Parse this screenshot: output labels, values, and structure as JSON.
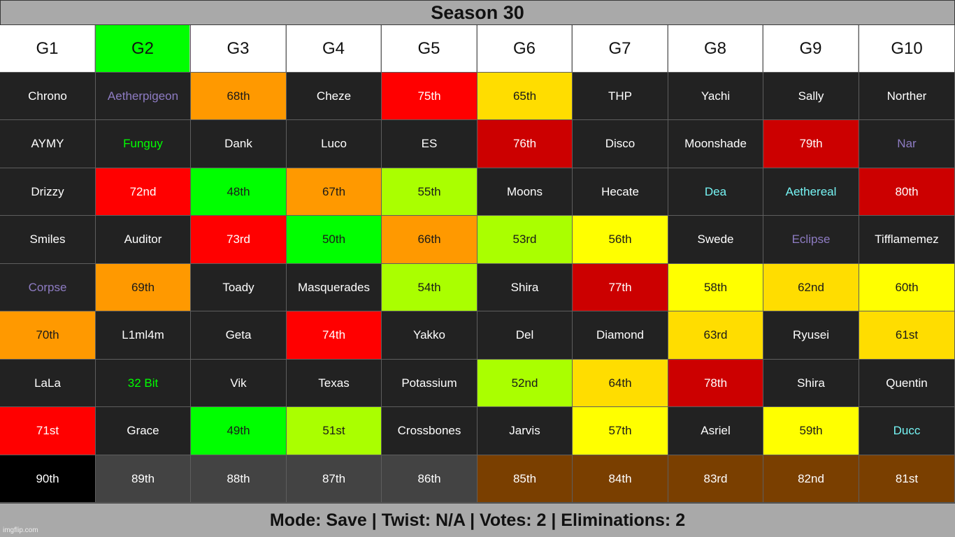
{
  "title": "Season 30",
  "headers": [
    {
      "label": "G1",
      "bg": "#ffffff"
    },
    {
      "label": "G2",
      "bg": "#00ff00"
    },
    {
      "label": "G3",
      "bg": "#ffffff"
    },
    {
      "label": "G4",
      "bg": "#ffffff"
    },
    {
      "label": "G5",
      "bg": "#ffffff"
    },
    {
      "label": "G6",
      "bg": "#ffffff"
    },
    {
      "label": "G7",
      "bg": "#ffffff"
    },
    {
      "label": "G8",
      "bg": "#ffffff"
    },
    {
      "label": "G9",
      "bg": "#ffffff"
    },
    {
      "label": "G10",
      "bg": "#ffffff"
    }
  ],
  "colors": {
    "dark": "#222222",
    "place_colors": {
      "red": "#ff0000",
      "dark_red": "#cc0000",
      "orange": "#ff9900",
      "gold": "#ffdd00",
      "yellow": "#ffff00",
      "lime": "#aaff00",
      "green": "#00ff00",
      "gray": "#434343",
      "brown": "#7a3f00",
      "black": "#000000"
    },
    "name_colors": {
      "purple": "#8e7cc3",
      "green": "#00ff00",
      "cyan": "#76f4f4"
    }
  },
  "rows": [
    [
      {
        "text": "Chrono",
        "kind": "name"
      },
      {
        "text": "Aetherpigeon",
        "kind": "name",
        "color": "purple"
      },
      {
        "text": "68th",
        "kind": "place",
        "bg": "orange"
      },
      {
        "text": "Cheze",
        "kind": "name"
      },
      {
        "text": "75th",
        "kind": "place",
        "bg": "red"
      },
      {
        "text": "65th",
        "kind": "place",
        "bg": "gold"
      },
      {
        "text": "THP",
        "kind": "name"
      },
      {
        "text": "Yachi",
        "kind": "name"
      },
      {
        "text": "Sally",
        "kind": "name"
      },
      {
        "text": "Norther",
        "kind": "name"
      }
    ],
    [
      {
        "text": "AYMY",
        "kind": "name"
      },
      {
        "text": "Funguy",
        "kind": "name",
        "color": "green"
      },
      {
        "text": "Dank",
        "kind": "name"
      },
      {
        "text": "Luco",
        "kind": "name"
      },
      {
        "text": "ES",
        "kind": "name"
      },
      {
        "text": "76th",
        "kind": "place",
        "bg": "dark_red"
      },
      {
        "text": "Disco",
        "kind": "name"
      },
      {
        "text": "Moonshade",
        "kind": "name"
      },
      {
        "text": "79th",
        "kind": "place",
        "bg": "dark_red"
      },
      {
        "text": "Nar",
        "kind": "name",
        "color": "purple"
      }
    ],
    [
      {
        "text": "Drizzy",
        "kind": "name"
      },
      {
        "text": "72nd",
        "kind": "place",
        "bg": "red"
      },
      {
        "text": "48th",
        "kind": "place",
        "bg": "green"
      },
      {
        "text": "67th",
        "kind": "place",
        "bg": "orange"
      },
      {
        "text": "55th",
        "kind": "place",
        "bg": "lime"
      },
      {
        "text": "Moons",
        "kind": "name"
      },
      {
        "text": "Hecate",
        "kind": "name"
      },
      {
        "text": "Dea",
        "kind": "name",
        "color": "cyan"
      },
      {
        "text": "Aethereal",
        "kind": "name",
        "color": "cyan"
      },
      {
        "text": "80th",
        "kind": "place",
        "bg": "dark_red"
      }
    ],
    [
      {
        "text": "Smiles",
        "kind": "name"
      },
      {
        "text": "Auditor",
        "kind": "name"
      },
      {
        "text": "73rd",
        "kind": "place",
        "bg": "red"
      },
      {
        "text": "50th",
        "kind": "place",
        "bg": "green"
      },
      {
        "text": "66th",
        "kind": "place",
        "bg": "orange"
      },
      {
        "text": "53rd",
        "kind": "place",
        "bg": "lime"
      },
      {
        "text": "56th",
        "kind": "place",
        "bg": "yellow"
      },
      {
        "text": "Swede",
        "kind": "name"
      },
      {
        "text": "Eclipse",
        "kind": "name",
        "color": "purple"
      },
      {
        "text": "Tifflamemez",
        "kind": "name"
      }
    ],
    [
      {
        "text": "Corpse",
        "kind": "name",
        "color": "purple"
      },
      {
        "text": "69th",
        "kind": "place",
        "bg": "orange"
      },
      {
        "text": "Toady",
        "kind": "name"
      },
      {
        "text": "Masquerades",
        "kind": "name"
      },
      {
        "text": "54th",
        "kind": "place",
        "bg": "lime"
      },
      {
        "text": "Shira",
        "kind": "name"
      },
      {
        "text": "77th",
        "kind": "place",
        "bg": "dark_red"
      },
      {
        "text": "58th",
        "kind": "place",
        "bg": "yellow"
      },
      {
        "text": "62nd",
        "kind": "place",
        "bg": "gold"
      },
      {
        "text": "60th",
        "kind": "place",
        "bg": "yellow"
      }
    ],
    [
      {
        "text": "70th",
        "kind": "place",
        "bg": "orange"
      },
      {
        "text": "L1ml4m",
        "kind": "name"
      },
      {
        "text": "Geta",
        "kind": "name"
      },
      {
        "text": "74th",
        "kind": "place",
        "bg": "red"
      },
      {
        "text": "Yakko",
        "kind": "name"
      },
      {
        "text": "Del",
        "kind": "name"
      },
      {
        "text": "Diamond",
        "kind": "name"
      },
      {
        "text": "63rd",
        "kind": "place",
        "bg": "gold"
      },
      {
        "text": "Ryusei",
        "kind": "name"
      },
      {
        "text": "61st",
        "kind": "place",
        "bg": "gold"
      }
    ],
    [
      {
        "text": "LaLa",
        "kind": "name"
      },
      {
        "text": "32 Bit",
        "kind": "name",
        "color": "green"
      },
      {
        "text": "Vik",
        "kind": "name"
      },
      {
        "text": "Texas",
        "kind": "name"
      },
      {
        "text": "Potassium",
        "kind": "name"
      },
      {
        "text": "52nd",
        "kind": "place",
        "bg": "lime"
      },
      {
        "text": "64th",
        "kind": "place",
        "bg": "gold"
      },
      {
        "text": "78th",
        "kind": "place",
        "bg": "dark_red"
      },
      {
        "text": "Shira",
        "kind": "name"
      },
      {
        "text": "Quentin",
        "kind": "name"
      }
    ],
    [
      {
        "text": "71st",
        "kind": "place",
        "bg": "red"
      },
      {
        "text": "Grace",
        "kind": "name"
      },
      {
        "text": "49th",
        "kind": "place",
        "bg": "green"
      },
      {
        "text": "51st",
        "kind": "place",
        "bg": "lime"
      },
      {
        "text": "Crossbones",
        "kind": "name"
      },
      {
        "text": "Jarvis",
        "kind": "name"
      },
      {
        "text": "57th",
        "kind": "place",
        "bg": "yellow"
      },
      {
        "text": "Asriel",
        "kind": "name"
      },
      {
        "text": "59th",
        "kind": "place",
        "bg": "yellow"
      },
      {
        "text": "Ducc",
        "kind": "name",
        "color": "cyan"
      }
    ],
    [
      {
        "text": "90th",
        "kind": "place",
        "bg": "black"
      },
      {
        "text": "89th",
        "kind": "place",
        "bg": "gray"
      },
      {
        "text": "88th",
        "kind": "place",
        "bg": "gray"
      },
      {
        "text": "87th",
        "kind": "place",
        "bg": "gray"
      },
      {
        "text": "86th",
        "kind": "place",
        "bg": "gray"
      },
      {
        "text": "85th",
        "kind": "place",
        "bg": "brown"
      },
      {
        "text": "84th",
        "kind": "place",
        "bg": "brown"
      },
      {
        "text": "83rd",
        "kind": "place",
        "bg": "brown"
      },
      {
        "text": "82nd",
        "kind": "place",
        "bg": "brown"
      },
      {
        "text": "81st",
        "kind": "place",
        "bg": "brown"
      }
    ]
  ],
  "footer": "Mode: Save | Twist: N/A | Votes: 2 | Eliminations: 2",
  "watermark": "imgflip.com"
}
